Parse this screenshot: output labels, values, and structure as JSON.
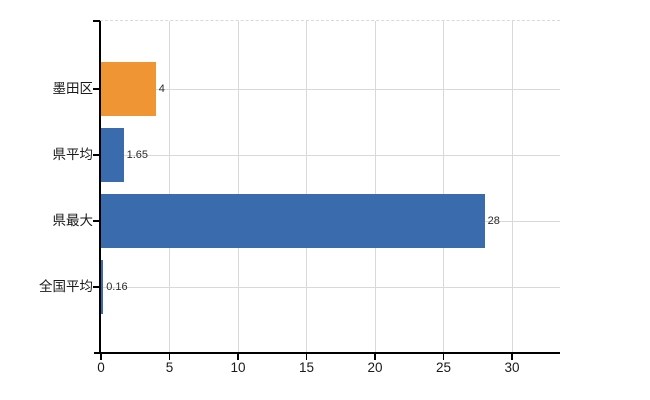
{
  "chart_data": {
    "type": "bar",
    "orientation": "horizontal",
    "categories": [
      "墨田区",
      "県平均",
      "県最大",
      "全国平均"
    ],
    "values": [
      4,
      1.65,
      28,
      0.16
    ],
    "value_labels": [
      "4",
      "1.65",
      "28",
      "0.16"
    ],
    "bar_colors": [
      "#EF9533",
      "#396BAD",
      "#396BAD",
      "#396BAD"
    ],
    "x_tick_values": [
      0,
      5,
      10,
      15,
      20,
      25,
      30
    ],
    "x_tick_labels": [
      "0",
      "5",
      "10",
      "15",
      "20",
      "25",
      "30"
    ],
    "xlim": [
      0,
      33.5
    ],
    "grid": true,
    "legend": false,
    "colors": {
      "axis": "#000000",
      "grid": "#D9D9D9",
      "tick_label": "#1A1A1A",
      "value_label": "#2B2B2B",
      "background": "#FFFFFF"
    }
  }
}
